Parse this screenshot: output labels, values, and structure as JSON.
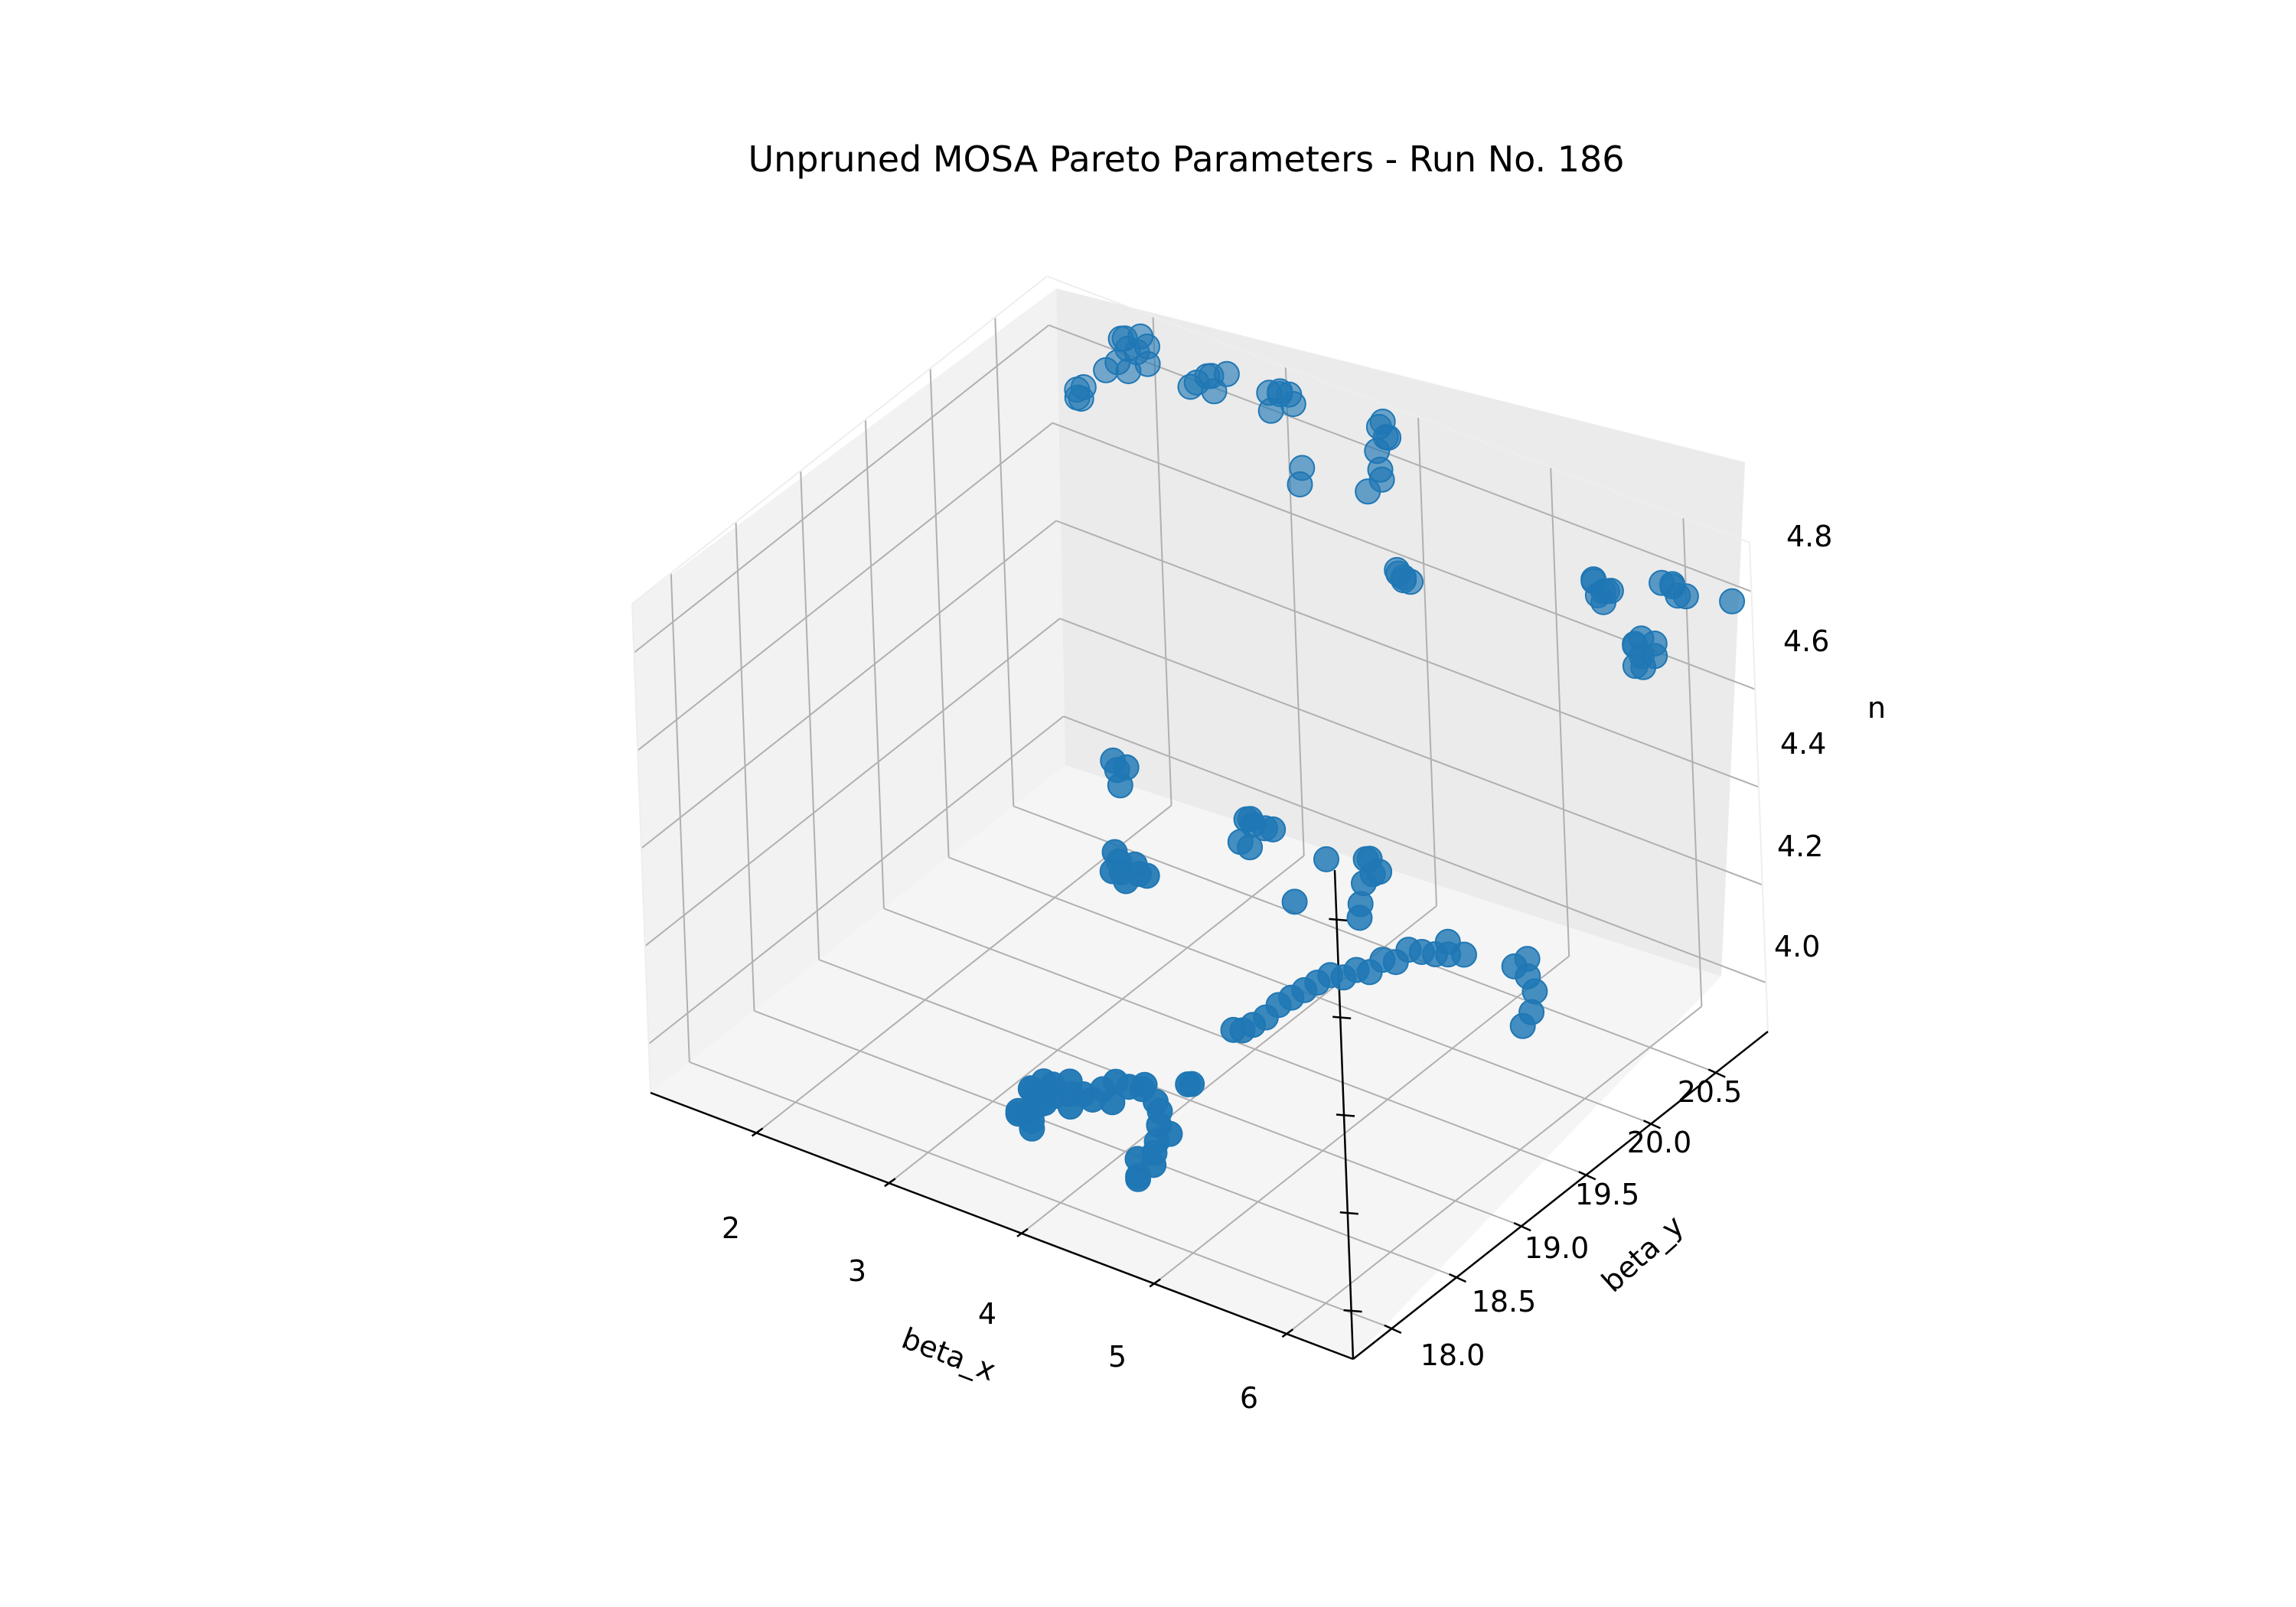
{
  "chart_data": {
    "type": "scatter",
    "projection": "3d",
    "title": "Unpruned MOSA Pareto Parameters - Run No. 186",
    "xlabel": "beta_x",
    "ylabel": "beta_y",
    "zlabel": "n",
    "xlim": [
      1.2,
      6.5
    ],
    "ylim": [
      17.7,
      20.9
    ],
    "zlim": [
      3.9,
      4.9
    ],
    "xticks": [
      "2",
      "3",
      "4",
      "5",
      "6"
    ],
    "yticks": [
      "18.0",
      "18.5",
      "19.0",
      "19.5",
      "20.0",
      "20.5"
    ],
    "zticks": [
      "4.0",
      "4.2",
      "4.4",
      "4.6",
      "4.8"
    ],
    "grid": true,
    "marker_color": "#1f77b4",
    "pane_color": "#f2f2f2",
    "series": [
      {
        "points": [
          [
            1.5,
            20.8,
            4.72
          ],
          [
            1.52,
            20.78,
            4.71
          ],
          [
            1.55,
            20.8,
            4.73
          ],
          [
            1.58,
            20.75,
            4.72
          ],
          [
            1.85,
            20.8,
            4.86
          ],
          [
            1.9,
            20.78,
            4.87
          ],
          [
            1.95,
            20.75,
            4.86
          ],
          [
            2.0,
            20.8,
            4.88
          ],
          [
            2.05,
            20.72,
            4.87
          ],
          [
            1.92,
            20.7,
            4.84
          ],
          [
            2.0,
            20.7,
            4.83
          ],
          [
            2.1,
            20.75,
            4.88
          ],
          [
            2.15,
            20.7,
            4.86
          ],
          [
            1.88,
            20.65,
            4.83
          ],
          [
            2.5,
            20.8,
            4.85
          ],
          [
            2.55,
            20.78,
            4.86
          ],
          [
            2.6,
            20.75,
            4.84
          ],
          [
            2.52,
            20.7,
            4.86
          ],
          [
            2.65,
            20.8,
            4.87
          ],
          [
            2.45,
            20.72,
            4.84
          ],
          [
            3.0,
            20.85,
            4.86
          ],
          [
            3.05,
            20.8,
            4.87
          ],
          [
            3.02,
            20.75,
            4.88
          ],
          [
            3.1,
            20.82,
            4.87
          ],
          [
            3.15,
            20.8,
            4.86
          ],
          [
            3.08,
            20.7,
            4.86
          ],
          [
            3.25,
            20.75,
            4.75
          ],
          [
            3.28,
            20.7,
            4.73
          ],
          [
            3.8,
            20.8,
            4.88
          ],
          [
            3.85,
            20.78,
            4.9
          ],
          [
            3.9,
            20.75,
            4.88
          ],
          [
            3.95,
            20.72,
            4.89
          ],
          [
            3.88,
            20.7,
            4.86
          ],
          [
            3.92,
            20.68,
            4.83
          ],
          [
            3.96,
            20.65,
            4.82
          ],
          [
            3.9,
            20.6,
            4.8
          ],
          [
            4.1,
            20.6,
            4.66
          ],
          [
            4.13,
            20.58,
            4.66
          ],
          [
            4.15,
            20.6,
            4.65
          ],
          [
            4.18,
            20.62,
            4.64
          ],
          [
            4.2,
            20.55,
            4.66
          ],
          [
            5.5,
            20.7,
            4.76
          ],
          [
            5.52,
            20.68,
            4.77
          ],
          [
            5.55,
            20.72,
            4.74
          ],
          [
            5.58,
            20.65,
            4.75
          ],
          [
            5.6,
            20.7,
            4.75
          ],
          [
            5.62,
            20.65,
            4.74
          ],
          [
            5.65,
            20.68,
            4.76
          ],
          [
            5.9,
            20.6,
            4.69
          ],
          [
            5.92,
            20.58,
            4.7
          ],
          [
            5.95,
            20.6,
            4.71
          ],
          [
            6.0,
            20.55,
            4.69
          ],
          [
            6.05,
            20.6,
            4.71
          ],
          [
            6.1,
            20.55,
            4.7
          ],
          [
            6.0,
            20.5,
            4.68
          ],
          [
            6.08,
            20.48,
            4.69
          ],
          [
            6.0,
            20.8,
            4.78
          ],
          [
            6.05,
            20.75,
            4.8
          ],
          [
            6.1,
            20.8,
            4.77
          ],
          [
            6.02,
            20.7,
            4.81
          ],
          [
            6.12,
            20.72,
            4.79
          ],
          [
            6.4,
            20.85,
            4.78
          ],
          [
            3.2,
            19.3,
            4.45
          ],
          [
            3.25,
            19.28,
            4.44
          ],
          [
            3.28,
            19.32,
            4.44
          ],
          [
            3.3,
            19.25,
            4.42
          ],
          [
            4.0,
            19.5,
            4.37
          ],
          [
            4.05,
            19.48,
            4.38
          ],
          [
            4.1,
            19.45,
            4.38
          ],
          [
            4.12,
            19.52,
            4.36
          ],
          [
            4.05,
            19.4,
            4.35
          ],
          [
            4.2,
            19.5,
            4.37
          ],
          [
            4.1,
            19.42,
            4.34
          ],
          [
            4.8,
            19.6,
            4.35
          ],
          [
            4.85,
            19.58,
            4.36
          ],
          [
            4.9,
            19.55,
            4.34
          ],
          [
            4.88,
            19.5,
            4.33
          ],
          [
            4.95,
            19.55,
            4.35
          ],
          [
            4.9,
            19.45,
            4.3
          ],
          [
            4.92,
            19.42,
            4.28
          ],
          [
            3.8,
            18.7,
            4.45
          ],
          [
            3.85,
            18.68,
            4.44
          ],
          [
            3.9,
            18.65,
            4.43
          ],
          [
            3.95,
            18.7,
            4.44
          ],
          [
            4.0,
            18.68,
            4.43
          ],
          [
            4.02,
            18.72,
            4.42
          ],
          [
            3.88,
            18.6,
            4.44
          ],
          [
            3.98,
            18.6,
            4.43
          ],
          [
            3.6,
            18.2,
            4.05
          ],
          [
            3.65,
            18.25,
            4.06
          ],
          [
            3.7,
            18.2,
            4.05
          ],
          [
            3.75,
            18.22,
            4.07
          ],
          [
            3.8,
            18.18,
            4.06
          ],
          [
            3.85,
            18.25,
            4.08
          ],
          [
            3.9,
            18.2,
            4.07
          ],
          [
            3.95,
            18.15,
            4.06
          ],
          [
            4.0,
            18.2,
            4.08
          ],
          [
            4.05,
            18.22,
            4.07
          ],
          [
            4.1,
            18.25,
            4.09
          ],
          [
            4.15,
            18.3,
            4.1
          ],
          [
            4.2,
            18.22,
            4.08
          ],
          [
            4.25,
            18.3,
            4.1
          ],
          [
            4.3,
            18.35,
            4.09
          ],
          [
            4.35,
            18.32,
            4.11
          ],
          [
            3.5,
            18.3,
            4.02
          ],
          [
            3.55,
            18.28,
            4.01
          ],
          [
            3.6,
            18.3,
            4.0
          ],
          [
            3.58,
            18.2,
            4.0
          ],
          [
            3.62,
            18.25,
            4.01
          ],
          [
            3.65,
            18.15,
            4.0
          ],
          [
            3.7,
            18.1,
            4.0
          ],
          [
            3.6,
            18.1,
            4.02
          ],
          [
            3.55,
            18.15,
            4.01
          ],
          [
            4.45,
            18.3,
            4.09
          ],
          [
            4.5,
            18.28,
            4.08
          ],
          [
            4.52,
            18.25,
            4.06
          ],
          [
            4.55,
            18.2,
            4.04
          ],
          [
            4.6,
            18.25,
            4.05
          ],
          [
            4.58,
            18.15,
            4.03
          ],
          [
            4.62,
            18.1,
            4.02
          ],
          [
            4.55,
            18.05,
            4.0
          ],
          [
            4.6,
            18.0,
            4.01
          ],
          [
            4.5,
            18.1,
            4.02
          ],
          [
            4.6,
            18.4,
            4.12
          ],
          [
            4.65,
            18.38,
            4.13
          ],
          [
            4.35,
            19.0,
            4.08
          ],
          [
            4.4,
            19.02,
            4.08
          ],
          [
            4.45,
            19.05,
            4.09
          ],
          [
            4.5,
            19.1,
            4.1
          ],
          [
            4.55,
            19.15,
            4.12
          ],
          [
            4.6,
            19.2,
            4.13
          ],
          [
            4.65,
            19.25,
            4.14
          ],
          [
            4.7,
            19.3,
            4.15
          ],
          [
            4.75,
            19.35,
            4.16
          ],
          [
            4.8,
            19.4,
            4.15
          ],
          [
            4.85,
            19.45,
            4.16
          ],
          [
            4.9,
            19.5,
            4.15
          ],
          [
            4.95,
            19.55,
            4.17
          ],
          [
            5.0,
            19.6,
            4.16
          ],
          [
            5.05,
            19.65,
            4.18
          ],
          [
            5.1,
            19.7,
            4.17
          ],
          [
            5.15,
            19.75,
            4.16
          ],
          [
            5.2,
            19.8,
            4.18
          ],
          [
            5.25,
            19.75,
            4.17
          ],
          [
            5.3,
            19.82,
            4.16
          ],
          [
            5.6,
            19.9,
            4.15
          ],
          [
            5.65,
            19.95,
            4.16
          ],
          [
            5.7,
            19.9,
            4.14
          ],
          [
            5.8,
            19.85,
            4.13
          ],
          [
            5.82,
            19.8,
            4.1
          ],
          [
            5.8,
            19.75,
            4.08
          ],
          [
            4.6,
            19.5,
            4.35
          ],
          [
            4.55,
            19.3,
            4.3
          ]
        ]
      }
    ]
  }
}
